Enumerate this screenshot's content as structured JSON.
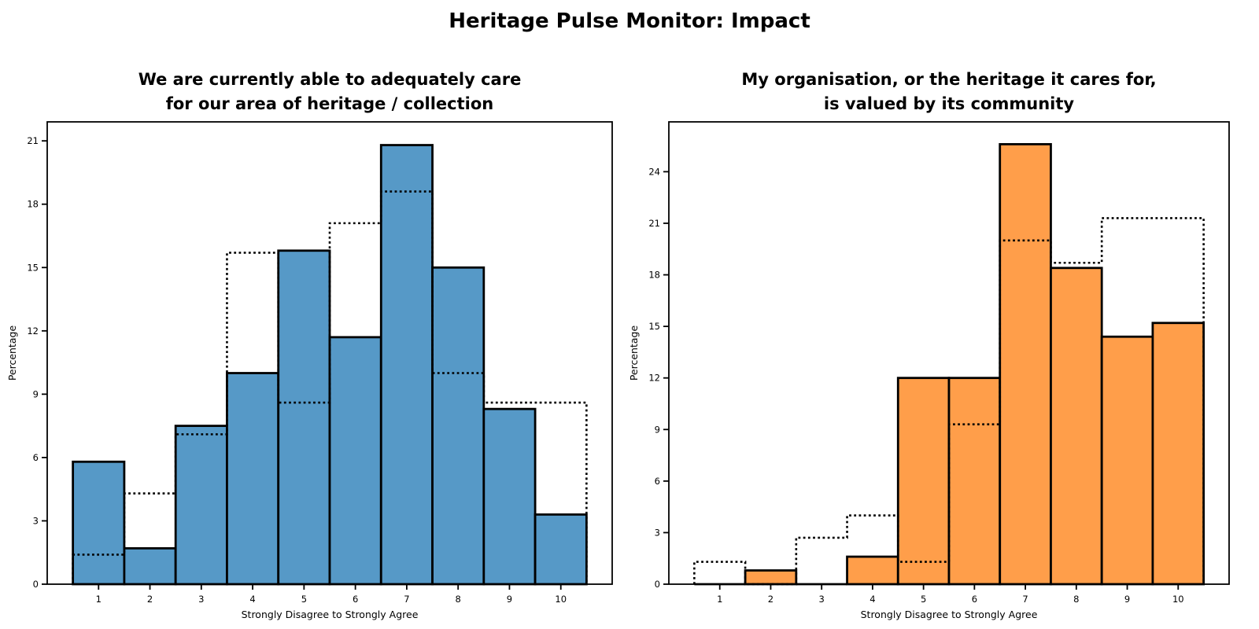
{
  "page": {
    "suptitle": "Heritage Pulse Monitor: Impact"
  },
  "chart_data": [
    {
      "type": "bar",
      "subtype": "histogram-with-dotted-step-overlay",
      "title": "We are currently able to adequately care for our area of heritage / collection",
      "title_lines": [
        "We are currently able to adequately care",
        "for our area of heritage / collection"
      ],
      "xlabel": "Strongly Disagree to Strongly Agree",
      "ylabel": "Percentage",
      "categories": [
        1,
        2,
        3,
        4,
        5,
        6,
        7,
        8,
        9,
        10
      ],
      "x_tick_labels": [
        "1",
        "2",
        "3",
        "4",
        "5",
        "6",
        "7",
        "8",
        "9",
        "10"
      ],
      "series": [
        {
          "name": "filled-bars",
          "style": "filled",
          "values": [
            5.8,
            1.7,
            7.5,
            10.0,
            15.8,
            11.7,
            20.8,
            15.0,
            8.3,
            3.3
          ]
        },
        {
          "name": "dotted-outline",
          "style": "dotted-step",
          "values": [
            1.4,
            4.3,
            7.1,
            15.7,
            8.6,
            17.1,
            18.6,
            10.0,
            8.6,
            8.6
          ]
        }
      ],
      "bar_color": "#5699C7",
      "edge_color": "#000000",
      "dotted_color": "#000000",
      "xlim": [
        0,
        11
      ],
      "ylim": [
        0,
        21.9
      ],
      "yticks": [
        0,
        3,
        6,
        9,
        12,
        15,
        18,
        21
      ],
      "grid": false,
      "legend": "none"
    },
    {
      "type": "bar",
      "subtype": "histogram-with-dotted-step-overlay",
      "title": "My organisation, or the heritage it cares for, is valued by its community",
      "title_lines": [
        "My organisation, or the heritage it cares for,",
        "is valued by its community"
      ],
      "xlabel": "Strongly Disagree to Strongly Agree",
      "ylabel": "Percentage",
      "categories": [
        1,
        2,
        3,
        4,
        5,
        6,
        7,
        8,
        9,
        10
      ],
      "x_tick_labels": [
        "1",
        "2",
        "3",
        "4",
        "5",
        "6",
        "7",
        "8",
        "9",
        "10"
      ],
      "series": [
        {
          "name": "filled-bars",
          "style": "filled",
          "values": [
            0,
            0.8,
            0,
            1.6,
            12.0,
            12.0,
            25.6,
            18.4,
            14.4,
            15.2
          ]
        },
        {
          "name": "dotted-outline",
          "style": "dotted-step",
          "values": [
            1.3,
            0,
            2.7,
            4.0,
            1.3,
            9.3,
            20.0,
            18.7,
            21.3,
            21.3
          ]
        }
      ],
      "bar_color": "#FF9E4A",
      "edge_color": "#000000",
      "dotted_color": "#000000",
      "xlim": [
        0,
        11
      ],
      "ylim": [
        0,
        26.9
      ],
      "yticks": [
        0,
        3,
        6,
        9,
        12,
        15,
        18,
        21,
        24
      ],
      "grid": false,
      "legend": "none"
    }
  ]
}
